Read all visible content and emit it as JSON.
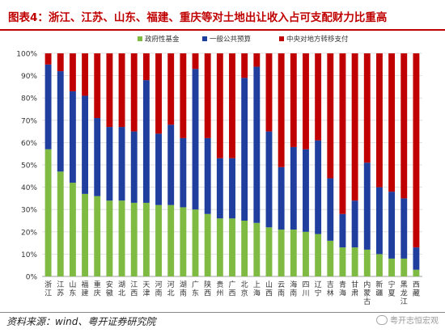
{
  "title": "图表4：浙江、江苏、山东、福建、重庆等对土地出让收入占可支配财力比重高",
  "source": "资料来源：wind、粤开证券研究院",
  "watermark": "粤开志恒宏观",
  "colors": {
    "title": "#c00000",
    "green": "#7fba42",
    "blue": "#1f3e9e",
    "red": "#c00000"
  },
  "chart_data": {
    "type": "bar",
    "stacked": true,
    "categories": [
      "浙江",
      "江苏",
      "山东",
      "福建",
      "重庆",
      "安徽",
      "湖北",
      "江西",
      "天津",
      "河南",
      "河北",
      "湖南",
      "广东",
      "陕西",
      "贵州",
      "广西",
      "北京",
      "上海",
      "山西",
      "云南",
      "海南",
      "四川",
      "辽宁",
      "吉林",
      "青海",
      "甘肃",
      "内蒙古",
      "新疆",
      "宁夏",
      "黑龙江",
      "西藏"
    ],
    "series": [
      {
        "name": "政府性基金",
        "color": "#7fba42",
        "values": [
          57,
          47,
          42,
          37,
          36,
          34,
          34,
          33,
          33,
          32,
          32,
          31,
          30,
          28,
          26,
          26,
          25,
          24,
          22,
          21,
          21,
          20,
          19,
          16,
          13,
          13,
          12,
          10,
          8,
          8,
          3
        ]
      },
      {
        "name": "一般公共预算",
        "color": "#1f3e9e",
        "values": [
          38,
          45,
          41,
          44,
          35,
          33,
          33,
          32,
          55,
          32,
          36,
          31,
          63,
          34,
          27,
          27,
          64,
          70,
          43,
          28,
          37,
          37,
          42,
          28,
          15,
          21,
          39,
          30,
          30,
          27,
          10
        ]
      },
      {
        "name": "中央对地方转移支付",
        "color": "#c00000",
        "values": [
          5,
          8,
          17,
          19,
          29,
          33,
          33,
          35,
          12,
          36,
          32,
          38,
          7,
          38,
          47,
          47,
          11,
          6,
          35,
          51,
          42,
          43,
          39,
          56,
          72,
          66,
          49,
          60,
          62,
          65,
          87
        ]
      }
    ],
    "y_ticks": [
      "0%",
      "10%",
      "20%",
      "30%",
      "40%",
      "50%",
      "60%",
      "70%",
      "80%",
      "90%",
      "100%"
    ],
    "ylim": [
      0,
      100
    ],
    "grid": true,
    "legend_position": "top"
  }
}
